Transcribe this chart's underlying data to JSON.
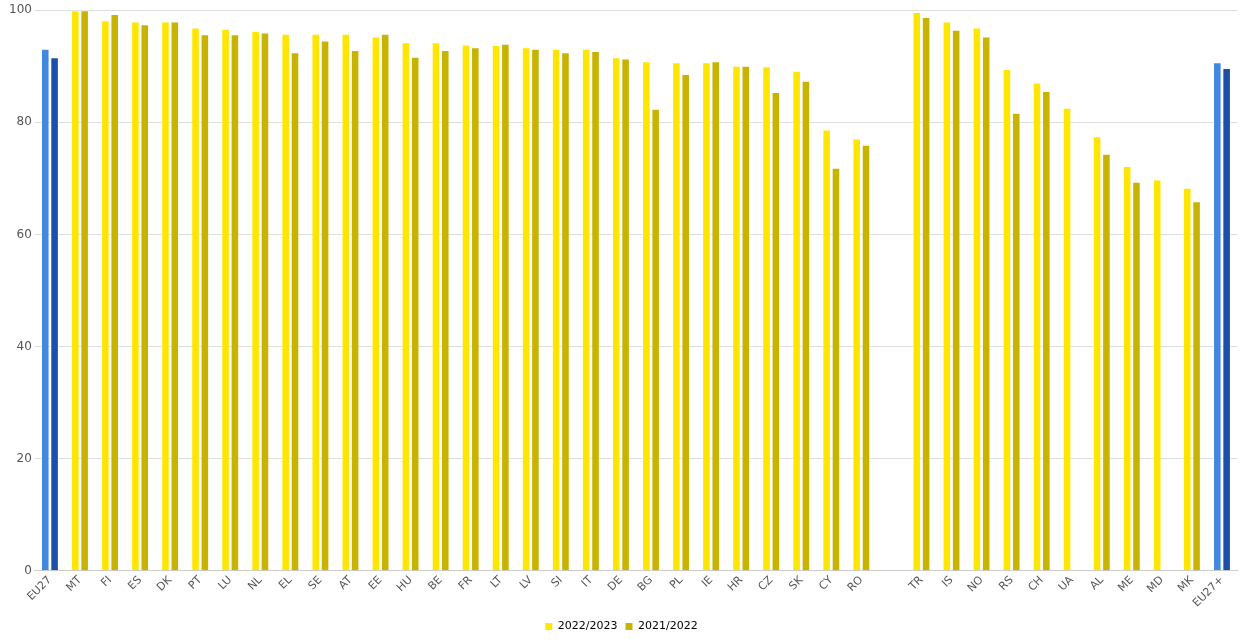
{
  "chart_data": {
    "type": "bar",
    "categories": [
      "EU27",
      "MT",
      "FI",
      "ES",
      "DK",
      "PT",
      "LU",
      "NL",
      "EL",
      "SE",
      "AT",
      "EE",
      "HU",
      "BE",
      "FR",
      "LT",
      "LV",
      "SI",
      "IT",
      "DE",
      "BG",
      "PL",
      "IE",
      "HR",
      "CZ",
      "SK",
      "CY",
      "RO",
      null,
      "TR",
      "IS",
      "NO",
      "RS",
      "CH",
      "UA",
      "AL",
      "ME",
      "MD",
      "MK",
      "EU27+"
    ],
    "series": [
      {
        "name": "2022/2023",
        "color": "#ffe600",
        "colors": [
          "#4189e0",
          "#ffe600",
          "#ffe600",
          "#ffe600",
          "#ffe600",
          "#ffe600",
          "#ffe600",
          "#ffe600",
          "#ffe600",
          "#ffe600",
          "#ffe600",
          "#ffe600",
          "#ffe600",
          "#ffe600",
          "#ffe600",
          "#ffe600",
          "#ffe600",
          "#ffe600",
          "#ffe600",
          "#ffe600",
          "#ffe600",
          "#ffe600",
          "#ffe600",
          "#ffe600",
          "#ffe600",
          "#ffe600",
          "#ffe600",
          "#ffe600",
          "#ffe600",
          "#ffe600",
          "#ffe600",
          "#ffe600",
          "#ffe600",
          "#ffe600",
          "#ffe600",
          "#ffe600",
          "#ffe600",
          "#ffe600",
          "#ffe600",
          "#4189e0"
        ],
        "values": [
          93.1,
          100,
          98.2,
          98.0,
          98.0,
          96.9,
          96.7,
          96.3,
          95.8,
          95.8,
          95.8,
          95.3,
          94.3,
          94.3,
          93.9,
          93.8,
          93.4,
          93.1,
          93.1,
          91.6,
          90.9,
          90.7,
          90.7,
          90.1,
          90.0,
          89.2,
          78.7,
          77.1,
          null,
          99.7,
          98.0,
          96.9,
          89.5,
          87.1,
          82.6,
          77.5,
          72.2,
          69.8,
          68.3,
          90.7
        ]
      },
      {
        "name": "2021/2022",
        "color": "#c8b400",
        "colors": [
          "#1c4fa8",
          "#c8b400",
          "#c8b400",
          "#c8b400",
          "#c8b400",
          "#c8b400",
          "#c8b400",
          "#c8b400",
          "#c8b400",
          "#c8b400",
          "#c8b400",
          "#c8b400",
          "#c8b400",
          "#c8b400",
          "#c8b400",
          "#c8b400",
          "#c8b400",
          "#c8b400",
          "#c8b400",
          "#c8b400",
          "#c8b400",
          "#c8b400",
          "#c8b400",
          "#c8b400",
          "#c8b400",
          "#c8b400",
          "#c8b400",
          "#c8b400",
          "#c8b400",
          "#c8b400",
          "#c8b400",
          "#c8b400",
          "#c8b400",
          "#c8b400",
          "#c8b400",
          "#c8b400",
          "#c8b400",
          "#c8b400",
          "#c8b400",
          "#1c4fa8"
        ],
        "values": [
          91.6,
          100,
          99.3,
          97.5,
          98.0,
          95.7,
          95.7,
          96.0,
          92.5,
          94.6,
          92.9,
          95.8,
          91.7,
          92.9,
          93.4,
          94.0,
          93.1,
          92.5,
          92.7,
          91.4,
          82.4,
          88.6,
          90.9,
          90.1,
          85.4,
          87.4,
          71.9,
          76.0,
          null,
          98.8,
          96.5,
          95.3,
          81.7,
          85.6,
          null,
          74.4,
          69.4,
          null,
          65.9,
          89.7
        ]
      }
    ],
    "ylim": [
      0,
      100
    ],
    "yticks": [
      0,
      20,
      40,
      60,
      80,
      100
    ],
    "grid": "y",
    "legend": "bottom"
  }
}
